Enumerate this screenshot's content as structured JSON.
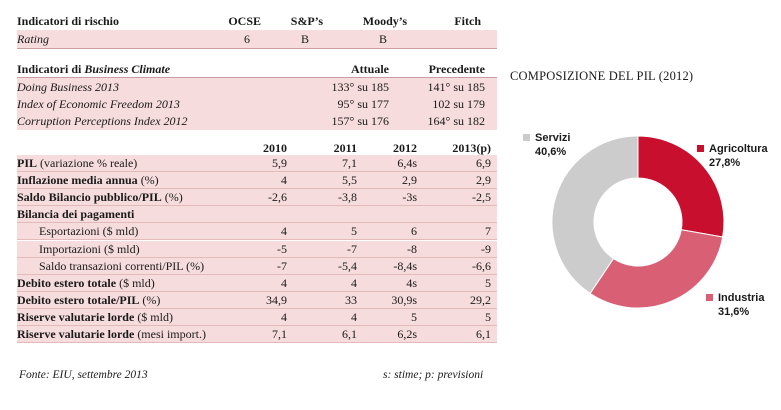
{
  "risk": {
    "header": {
      "label": "Indicatori di rischio",
      "cols": [
        "OCSE",
        "S&P’s",
        "Moody’s",
        "Fitch"
      ]
    },
    "row": {
      "label": "Rating",
      "values": [
        "6",
        "B",
        "B",
        ""
      ]
    }
  },
  "business": {
    "header": {
      "label_plain": "Indicatori di ",
      "label_italic": "Business Climate",
      "cols": [
        "Attuale",
        "Precedente"
      ]
    },
    "rows": [
      {
        "label": "Doing Business 2013",
        "values": [
          "133° su 185",
          "141° su 185"
        ]
      },
      {
        "label": "Index of Economic Freedom 2013",
        "values": [
          "95° su 177",
          "102 su 179"
        ]
      },
      {
        "label": "Corruption Perceptions Index 2012",
        "values": [
          "157° su 176",
          "164° su 182"
        ]
      }
    ]
  },
  "macro": {
    "years": [
      "2010",
      "2011",
      "2012",
      "2013(p)"
    ],
    "rows": [
      {
        "label_bold": "PIL",
        "label_rest": " (variazione % reale)",
        "values": [
          "5,9",
          "7,1",
          "6,4s",
          "6,9"
        ]
      },
      {
        "label_bold": "Inflazione media annua",
        "label_rest": " (%)",
        "values": [
          "4",
          "5,5",
          "2,9",
          "2,9"
        ]
      },
      {
        "label_bold": "Saldo Bilancio pubblico/PIL",
        "label_rest": " (%)",
        "values": [
          "-2,6",
          "-3,8",
          "-3s",
          "-2,5"
        ]
      },
      {
        "label_bold": "Bilancia dei pagamenti",
        "label_rest": "",
        "values": [
          "",
          "",
          "",
          ""
        ]
      },
      {
        "label_bold": "",
        "label_rest": "Esportazioni ($ mld)",
        "values": [
          "4",
          "5",
          "6",
          "7"
        ]
      },
      {
        "label_bold": "",
        "label_rest": "Importazioni ($ mld)",
        "values": [
          "-5",
          "-7",
          "-8",
          "-9"
        ]
      },
      {
        "label_bold": "",
        "label_rest": "Saldo transazioni correnti/PIL (%)",
        "values": [
          "-7",
          "-5,4",
          "-8,4s",
          "-6,6"
        ]
      },
      {
        "label_bold": "Debito estero totale",
        "label_rest": " ($ mld)",
        "values": [
          "4",
          "4",
          "4s",
          "5"
        ]
      },
      {
        "label_bold": "Debito estero totale/PIL",
        "label_rest": " (%)",
        "values": [
          "34,9",
          "33",
          "30,9s",
          "29,2"
        ]
      },
      {
        "label_bold": "Riserve valutarie lorde",
        "label_rest": " ($ mld)",
        "values": [
          "4",
          "4",
          "5",
          "5"
        ]
      },
      {
        "label_bold": "Riserve valutarie lorde",
        "label_rest": " (mesi import.)",
        "values": [
          "7,1",
          "6,1",
          "6,2s",
          "6,1"
        ]
      }
    ]
  },
  "footer": {
    "source": "Fonte:  EIU, settembre 2013",
    "note": "s: stime; p: previsioni"
  },
  "chart_data": {
    "type": "pie",
    "variant": "donut",
    "title": "COMPOSIZIONE DEL PIL (2012)",
    "slices": [
      {
        "label": "Agricoltura",
        "value_label": "27,8%",
        "value": 27.8,
        "color": "#c8102e"
      },
      {
        "label": "Industria",
        "value_label": "31,6%",
        "value": 31.6,
        "color": "#d95f75"
      },
      {
        "label": "Servizi",
        "value_label": "40,6%",
        "value": 40.6,
        "color": "#cccccc"
      }
    ]
  }
}
